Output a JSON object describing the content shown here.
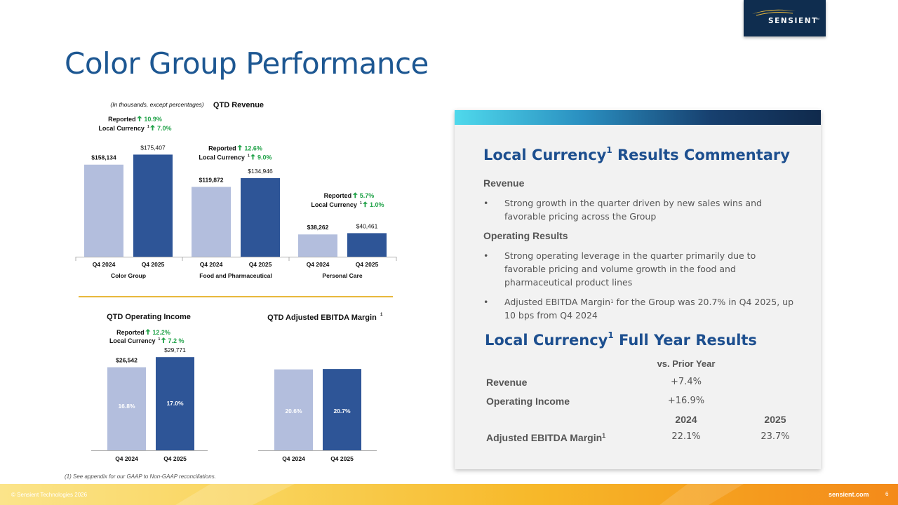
{
  "brand": {
    "name": "SENSIENT",
    "tm": "TM",
    "navy": "#0f2d4f",
    "gold": "#e8b83c"
  },
  "title": "Color Group Performance",
  "colors": {
    "light_bar": "#b3bedd",
    "dark_bar": "#2e5597",
    "green": "#22a34a"
  },
  "chart_data": [
    {
      "type": "bar",
      "title": "QTD Revenue",
      "note": "(In thousands, except percentages)",
      "groups": [
        {
          "name": "Color Group",
          "categories": [
            "Q4 2024",
            "Q4 2025"
          ],
          "values": [
            158134,
            175407
          ],
          "value_labels": [
            "$158,134",
            "$175,407"
          ],
          "reported": "Reported",
          "reported_change": "10.9%",
          "local": "Local Currency",
          "local_sup": "1",
          "local_change": "7.0%"
        },
        {
          "name": "Food and Pharmaceutical",
          "categories": [
            "Q4 2024",
            "Q4 2025"
          ],
          "values": [
            119872,
            134946
          ],
          "value_labels": [
            "$119,872",
            "$134,946"
          ],
          "reported": "Reported",
          "reported_change": "12.6%",
          "local": "Local Currency",
          "local_sup": "1",
          "local_change": "9.0%"
        },
        {
          "name": "Personal Care",
          "categories": [
            "Q4 2024",
            "Q4 2025"
          ],
          "values": [
            38262,
            40461
          ],
          "value_labels": [
            "$38,262",
            "$40,461"
          ],
          "reported": "Reported",
          "reported_change": "5.7%",
          "local": "Local Currency",
          "local_sup": "1",
          "local_change": "1.0%"
        }
      ]
    },
    {
      "type": "bar",
      "title": "QTD Operating Income",
      "categories": [
        "Q4 2024",
        "Q4 2025"
      ],
      "values": [
        26542,
        29771
      ],
      "value_labels": [
        "$26,542",
        "$29,771"
      ],
      "inner_labels": [
        "16.8%",
        "17.0%"
      ],
      "reported": "Reported",
      "reported_change": "12.2%",
      "local": "Local Currency",
      "local_sup": "1",
      "local_change": "7.2 %"
    },
    {
      "type": "bar",
      "title": "QTD Adjusted EBITDA Margin",
      "title_sup": "1",
      "categories": [
        "Q4 2024",
        "Q4 2025"
      ],
      "values": [
        20.6,
        20.7
      ],
      "inner_labels": [
        "20.6%",
        "20.7%"
      ]
    }
  ],
  "commentary": {
    "heading": "Local Currency",
    "heading_sup": "1",
    "heading_rest": "Results Commentary",
    "revenue_label": "Revenue",
    "revenue_bullets": [
      "Strong growth in the quarter driven by new sales wins and favorable pricing across the Group"
    ],
    "operating_label": "Operating Results",
    "operating_bullets": [
      "Strong operating leverage in the quarter primarily due to favorable pricing and volume growth in the food and pharmaceutical product lines"
    ],
    "ebitda_bullet_a": "Adjusted EBITDA Margin",
    "ebitda_bullet_sup": "1",
    "ebitda_bullet_b": " for the Group was 20.7% in Q4 2025, up 10 bps from Q4 2024",
    "bullet_char": "•"
  },
  "full_year": {
    "heading": "Local Currency",
    "heading_sup": "1",
    "heading_rest": "Full Year Results",
    "vs_header": "vs. Prior Year",
    "rows": [
      {
        "label": "Revenue",
        "value": "+7.4%"
      },
      {
        "label": "Operating Income",
        "value": "+16.9%"
      }
    ],
    "year_headers": [
      "2024",
      "2025"
    ],
    "margin_label": "Adjusted EBITDA Margin",
    "margin_sup": "1",
    "margin_values": [
      "22.1%",
      "23.7%"
    ]
  },
  "footnote": "(1) See appendix for our GAAP to Non-GAAP reconciliations.",
  "footer": {
    "copyright": "© Sensient Technologies 2026",
    "site": "sensient.com",
    "page": "6"
  }
}
